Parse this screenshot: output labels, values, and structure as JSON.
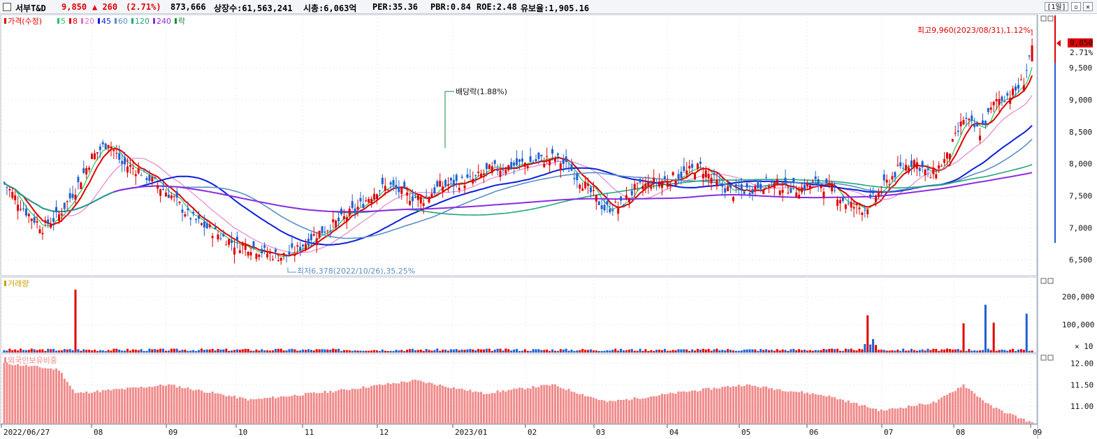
{
  "header": {
    "name": "서부T&D",
    "price": "9,850",
    "change": "▲ 260",
    "change_pct": "(2.71%)",
    "volume": "873,666",
    "shares": "상장수:61,563,241",
    "mktcap": "시총:6,063억",
    "per": "PER:35.36",
    "pbr": "PBR:0.84",
    "roe": "ROE:2.48",
    "float_ratio": "유보율:1,905.16",
    "period": "[1일]"
  },
  "colors": {
    "up": "#e00000",
    "down": "#1f5fd0",
    "ma5": "#22c55e",
    "ma8": "#e00000",
    "ma20": "#e071c8",
    "ma45": "#0a1fd9",
    "ma60": "#5b8fc8",
    "ma120": "#20a87a",
    "ma240": "#8a2be2",
    "foreign": "#f08a8a",
    "dividend": "#1b8a3a"
  },
  "chart_data": [
    {
      "type": "candlestick",
      "legend": [
        {
          "label": "가격(수정)",
          "color": "#e00000"
        },
        {
          "label": "5",
          "color": "#22c55e"
        },
        {
          "label": "8",
          "color": "#e00000"
        },
        {
          "label": "20",
          "color": "#e071c8"
        },
        {
          "label": "45",
          "color": "#0a1fd9"
        },
        {
          "label": "60",
          "color": "#5b8fc8"
        },
        {
          "label": "120",
          "color": "#20a87a"
        },
        {
          "label": "240",
          "color": "#8a2be2"
        },
        {
          "label": "락",
          "color": "#1b8a3a"
        }
      ],
      "y_ticks": [
        "6,500",
        "7,000",
        "7,500",
        "8,000",
        "8,500",
        "9,000",
        "9,500"
      ],
      "ylim": [
        6250,
        10200
      ],
      "closes_monthly_anchor": [
        [
          0,
          7700
        ],
        [
          8,
          7250
        ],
        [
          14,
          7000
        ],
        [
          20,
          7200
        ],
        [
          26,
          7600
        ],
        [
          32,
          8100
        ],
        [
          38,
          8350
        ],
        [
          43,
          8000
        ],
        [
          49,
          7900
        ],
        [
          55,
          7700
        ],
        [
          61,
          7500
        ],
        [
          67,
          7200
        ],
        [
          72,
          7050
        ],
        [
          78,
          6900
        ],
        [
          84,
          6750
        ],
        [
          90,
          6700
        ],
        [
          96,
          6600
        ],
        [
          101,
          6550
        ],
        [
          106,
          6620
        ],
        [
          112,
          6850
        ],
        [
          118,
          7000
        ],
        [
          124,
          7150
        ],
        [
          130,
          7350
        ],
        [
          136,
          7600
        ],
        [
          141,
          7650
        ],
        [
          147,
          7500
        ],
        [
          153,
          7450
        ],
        [
          159,
          7650
        ],
        [
          165,
          7700
        ],
        [
          171,
          7750
        ],
        [
          177,
          7900
        ],
        [
          183,
          7950
        ],
        [
          189,
          8000
        ],
        [
          195,
          8050
        ],
        [
          201,
          8100
        ],
        [
          207,
          7900
        ],
        [
          213,
          7600
        ],
        [
          219,
          7300
        ],
        [
          225,
          7350
        ],
        [
          230,
          7600
        ],
        [
          236,
          7700
        ],
        [
          242,
          7750
        ],
        [
          248,
          7850
        ],
        [
          254,
          7950
        ],
        [
          260,
          7700
        ],
        [
          266,
          7550
        ],
        [
          272,
          7600
        ],
        [
          278,
          7700
        ],
        [
          284,
          7650
        ],
        [
          290,
          7600
        ],
        [
          296,
          7700
        ],
        [
          302,
          7600
        ],
        [
          308,
          7350
        ],
        [
          314,
          7300
        ],
        [
          320,
          7600
        ],
        [
          326,
          7900
        ],
        [
          332,
          8050
        ],
        [
          338,
          7800
        ],
        [
          344,
          8100
        ],
        [
          350,
          8700
        ],
        [
          356,
          8500
        ],
        [
          362,
          9000
        ],
        [
          368,
          9100
        ],
        [
          372,
          9300
        ],
        [
          375,
          9850
        ]
      ],
      "max_label": "최고9,960(2023/08/31),1.12%",
      "min_label": "최저6,378(2022/10/26),35.25%",
      "dividend_label": "배당락(1.88%)",
      "last_price": "9,850",
      "last_pct": "2.71%"
    },
    {
      "type": "bar",
      "title": "거래량",
      "y_ticks": [
        "100,000",
        "200,000"
      ],
      "unit": "× 10",
      "ylim": [
        0,
        250000
      ]
    },
    {
      "type": "bar",
      "title": "외국인보유비중",
      "y_ticks": [
        "11.00",
        "11.50",
        "12.00"
      ],
      "ylim": [
        10.6,
        12.15
      ]
    }
  ],
  "x_axis": {
    "labels": [
      "2022/06/27",
      "08",
      "09",
      "10",
      "11",
      "12",
      "2023/01",
      "02",
      "03",
      "04",
      "05",
      "06",
      "07",
      "08",
      "09"
    ]
  }
}
